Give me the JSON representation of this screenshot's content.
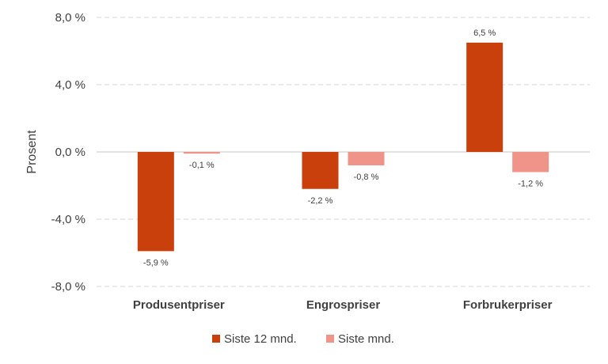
{
  "chart_data": {
    "type": "bar",
    "categories": [
      "Produsentpriser",
      "Engrospriser",
      "Forbrukerpriser"
    ],
    "series": [
      {
        "name": "Siste 12 mnd.",
        "color": "#C9400C",
        "values": [
          -5.9,
          -2.2,
          6.5
        ],
        "labels": [
          "-5,9 %",
          "-2,2 %",
          "6,5 %"
        ]
      },
      {
        "name": "Siste mnd.",
        "color": "#F0948A",
        "values": [
          -0.1,
          -0.8,
          -1.2
        ],
        "labels": [
          "-0,1 %",
          "-0,8 %",
          "-1,2 %"
        ]
      }
    ],
    "title": "",
    "xlabel": "",
    "ylabel": "Prosent",
    "ylim": [
      -8,
      8
    ],
    "yticks": [
      8,
      4,
      0,
      -4,
      -8
    ],
    "ytick_labels": [
      "8,0 %",
      "4,0 %",
      "0,0 %",
      "-4,0 %",
      "-8,0 %"
    ],
    "grid": true,
    "legend": "bottom"
  }
}
